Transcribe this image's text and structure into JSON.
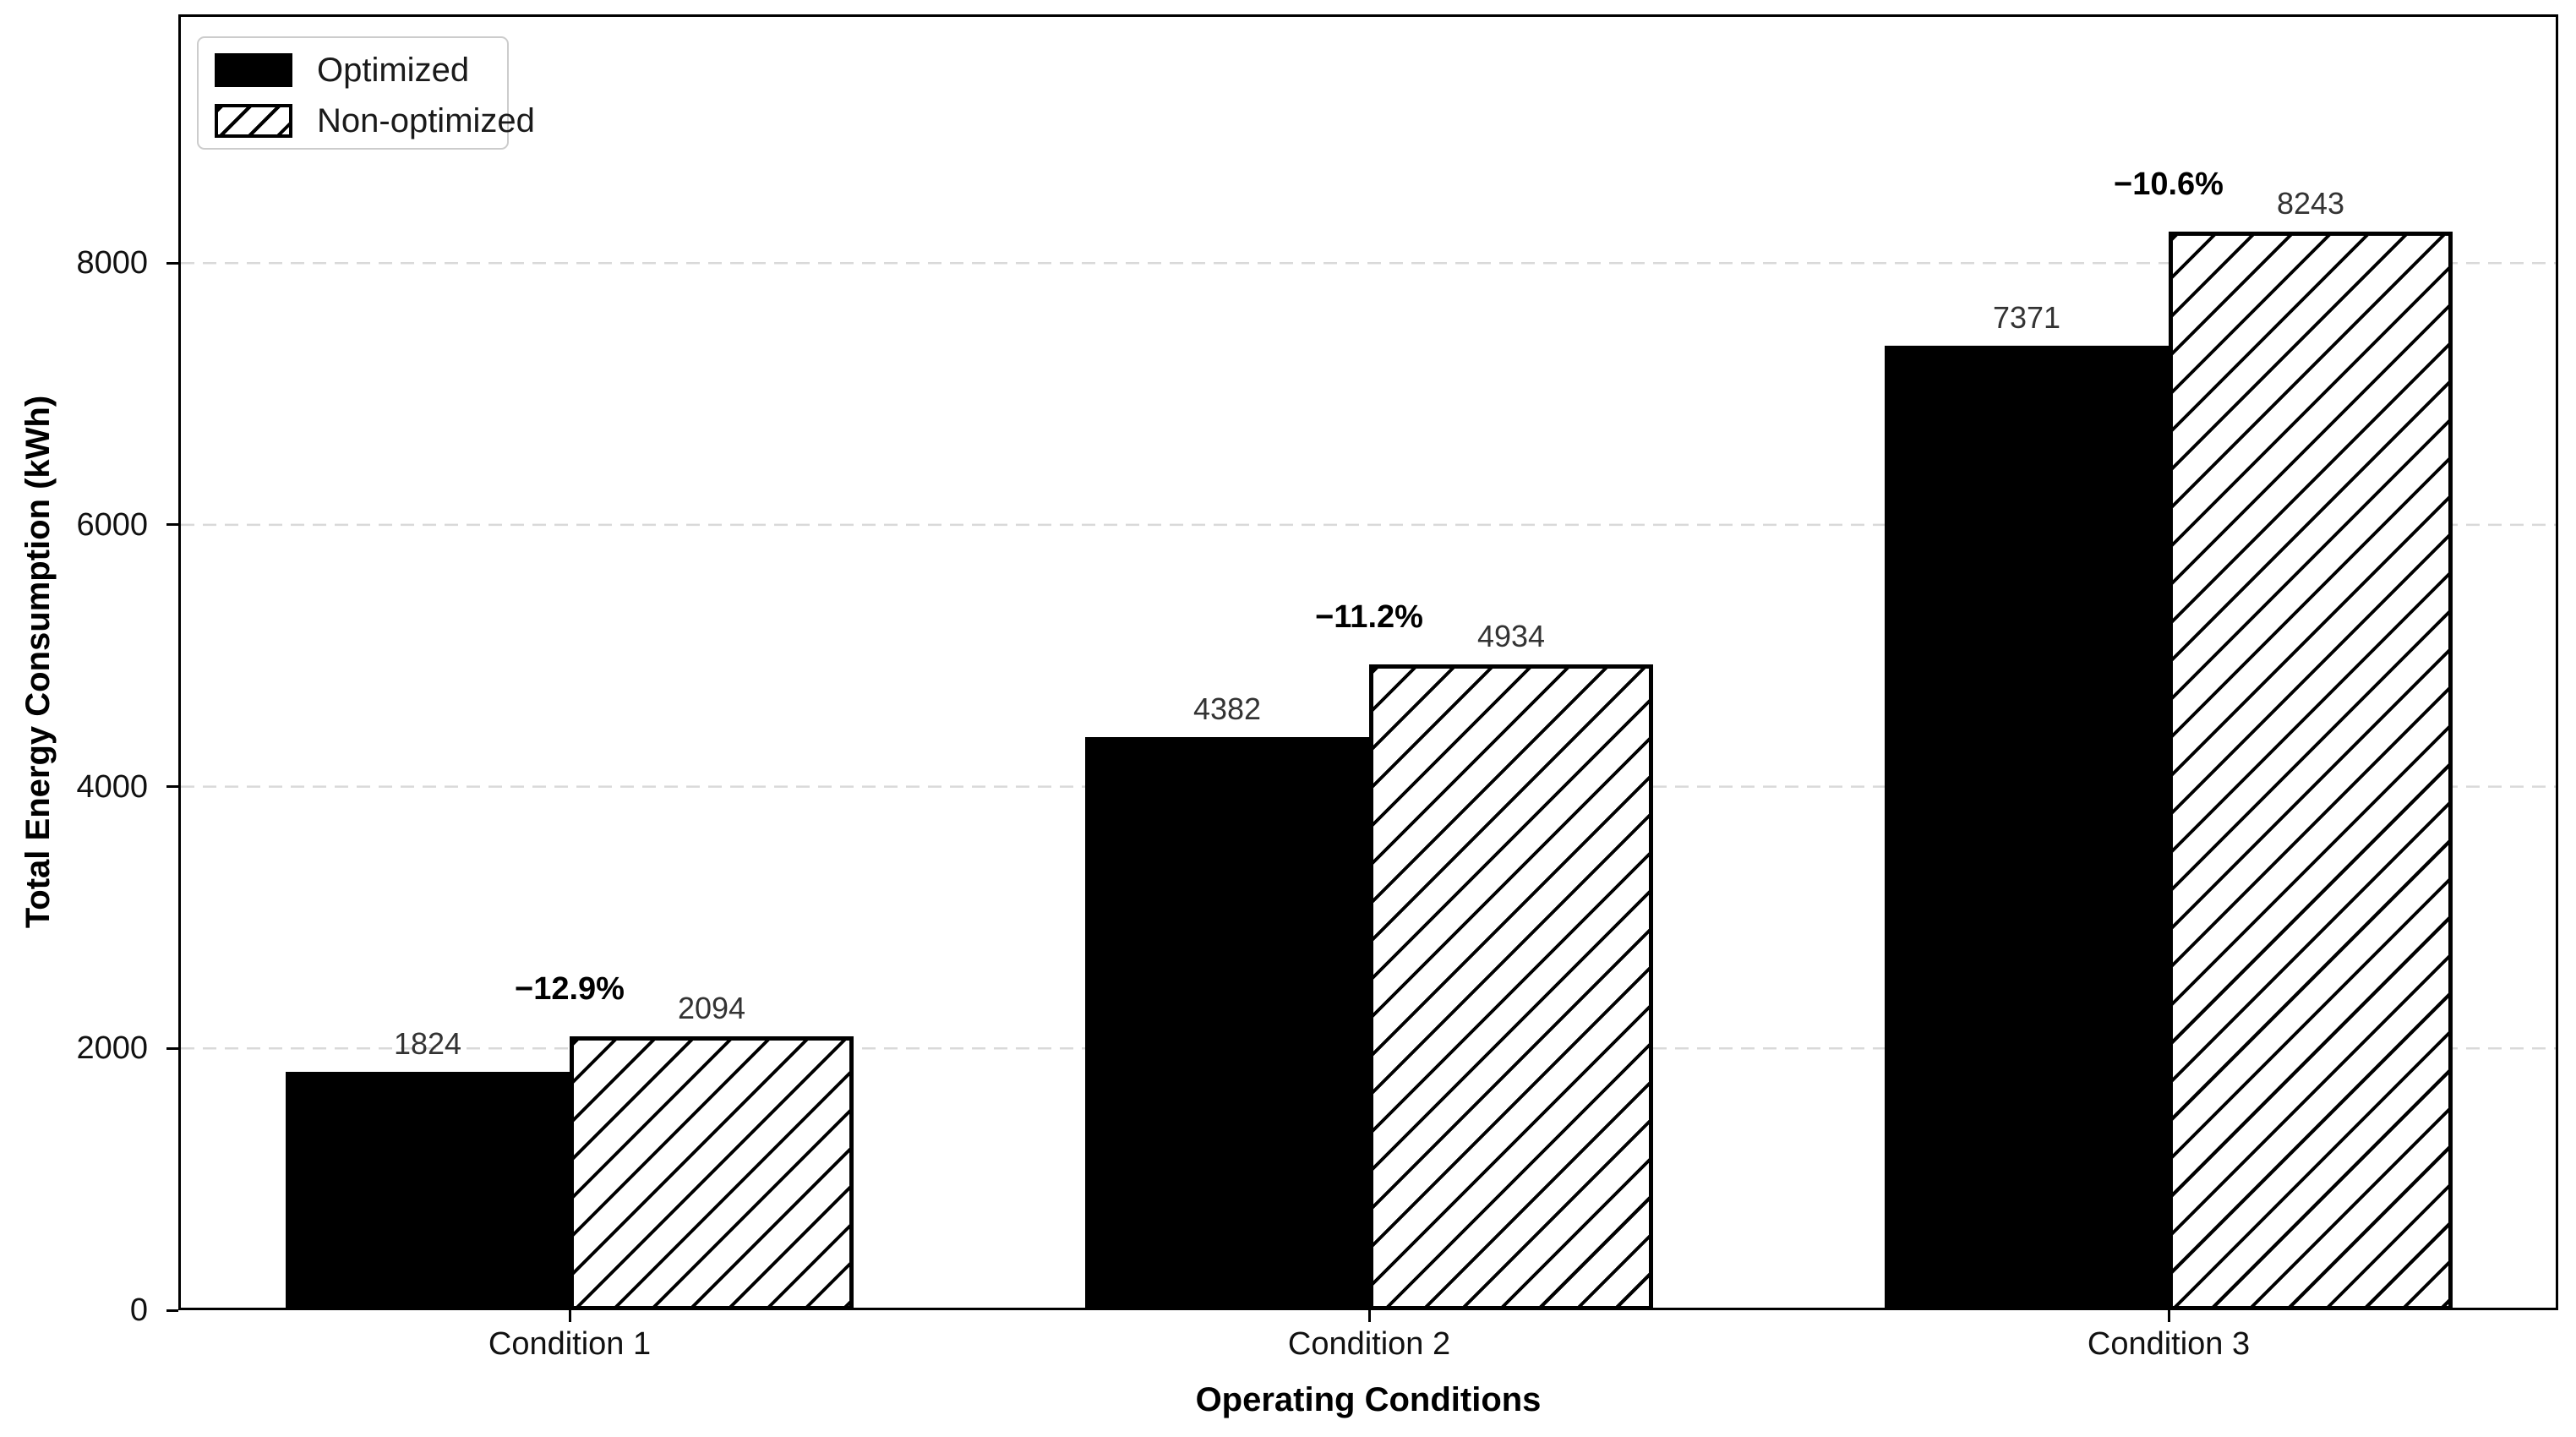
{
  "chart_data": {
    "type": "bar",
    "title": "",
    "xlabel": "Operating Conditions",
    "ylabel": "Total Energy Consumption (kWh)",
    "categories": [
      "Condition 1",
      "Condition 2",
      "Condition 3"
    ],
    "series": [
      {
        "name": "Optimized",
        "fill": "solid-black",
        "color": "#000000",
        "values": [
          1824,
          4382,
          7371
        ]
      },
      {
        "name": "Non-optimized",
        "fill": "diagonal-hatch",
        "color": "#000000",
        "values": [
          2094,
          4934,
          8243
        ]
      }
    ],
    "percent_annotations": [
      "−12.9%",
      "−11.2%",
      "−10.6%"
    ],
    "yticks": [
      0,
      2000,
      4000,
      6000,
      8000
    ],
    "ylim": [
      0,
      9900
    ],
    "grid": {
      "axis": "y",
      "style": "dashed",
      "color": "#d9d9d9"
    },
    "legend": {
      "position": "upper-left",
      "items": [
        "Optimized",
        "Non-optimized"
      ]
    },
    "colors": {
      "bar_fill": "#000000",
      "bar_edge": "#000000",
      "hatch_background": "#ffffff",
      "grid": "#d9d9d9"
    }
  }
}
